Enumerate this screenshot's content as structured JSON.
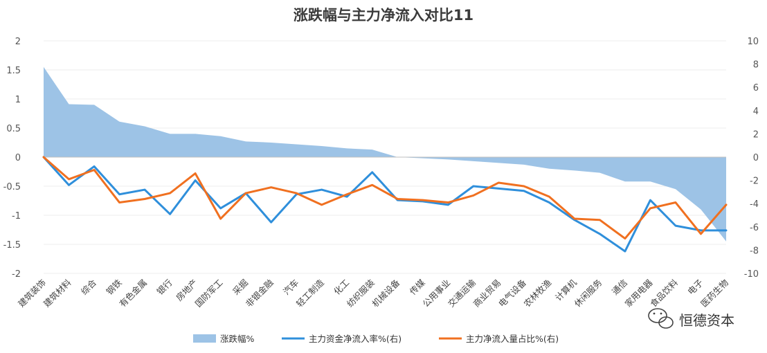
{
  "chart_data": {
    "type": "area",
    "title": "涨跌幅与主力净流入对比11",
    "categories": [
      "建筑装饰",
      "建筑材料",
      "综合",
      "钢铁",
      "有色金属",
      "银行",
      "房地产",
      "国防军工",
      "采掘",
      "非银金融",
      "汽车",
      "轻工制造",
      "化工",
      "纺织服装",
      "机械设备",
      "传媒",
      "公用事业",
      "交通运输",
      "商业贸易",
      "电气设备",
      "农林牧渔",
      "计算机",
      "休闲服务",
      "通信",
      "家用电器",
      "食品饮料",
      "电子",
      "医药生物"
    ],
    "y_left": {
      "ylim": [
        -2,
        2
      ],
      "ticks": [
        "2",
        "1.5",
        "1",
        "0.5",
        "0",
        "-0.5",
        "-1",
        "-1.5",
        "-2"
      ]
    },
    "y_right": {
      "ylim": [
        -10,
        10
      ],
      "ticks": [
        "10",
        "8",
        "6",
        "4",
        "2",
        "0",
        "-2",
        "-4",
        "-6",
        "-8",
        "-10"
      ]
    },
    "series": [
      {
        "name": "涨跌幅%",
        "type": "area",
        "axis": "left",
        "color": "#9dc3e6",
        "values": [
          1.55,
          0.91,
          0.9,
          0.61,
          0.53,
          0.4,
          0.4,
          0.36,
          0.27,
          0.25,
          0.22,
          0.19,
          0.15,
          0.13,
          0.0,
          -0.02,
          -0.04,
          -0.07,
          -0.1,
          -0.13,
          -0.2,
          -0.23,
          -0.27,
          -0.42,
          -0.42,
          -0.55,
          -0.9,
          -1.45
        ]
      },
      {
        "name": "主力资金净流入率%(右)",
        "type": "line",
        "axis": "right",
        "color": "#2f8fdb",
        "values": [
          0.0,
          -2.4,
          -0.8,
          -3.2,
          -2.8,
          -4.9,
          -2.0,
          -4.4,
          -3.1,
          -5.6,
          -3.2,
          -2.8,
          -3.4,
          -1.3,
          -3.7,
          -3.8,
          -4.1,
          -2.5,
          -2.7,
          -2.9,
          -3.9,
          -5.4,
          -6.6,
          -8.1,
          -3.7,
          -5.9,
          -6.3,
          -6.3
        ]
      },
      {
        "name": "主力净流入量占比%(右)",
        "type": "line",
        "axis": "right",
        "color": "#f07020",
        "values": [
          0.0,
          -1.9,
          -1.1,
          -3.9,
          -3.6,
          -3.1,
          -1.4,
          -5.3,
          -3.1,
          -2.6,
          -3.1,
          -4.1,
          -3.2,
          -2.4,
          -3.6,
          -3.7,
          -3.9,
          -3.3,
          -2.2,
          -2.5,
          -3.4,
          -5.3,
          -5.4,
          -7.0,
          -4.4,
          -3.9,
          -6.6,
          -4.1
        ]
      }
    ],
    "legend": "bottom"
  },
  "watermark": {
    "text": "恒德资本"
  }
}
